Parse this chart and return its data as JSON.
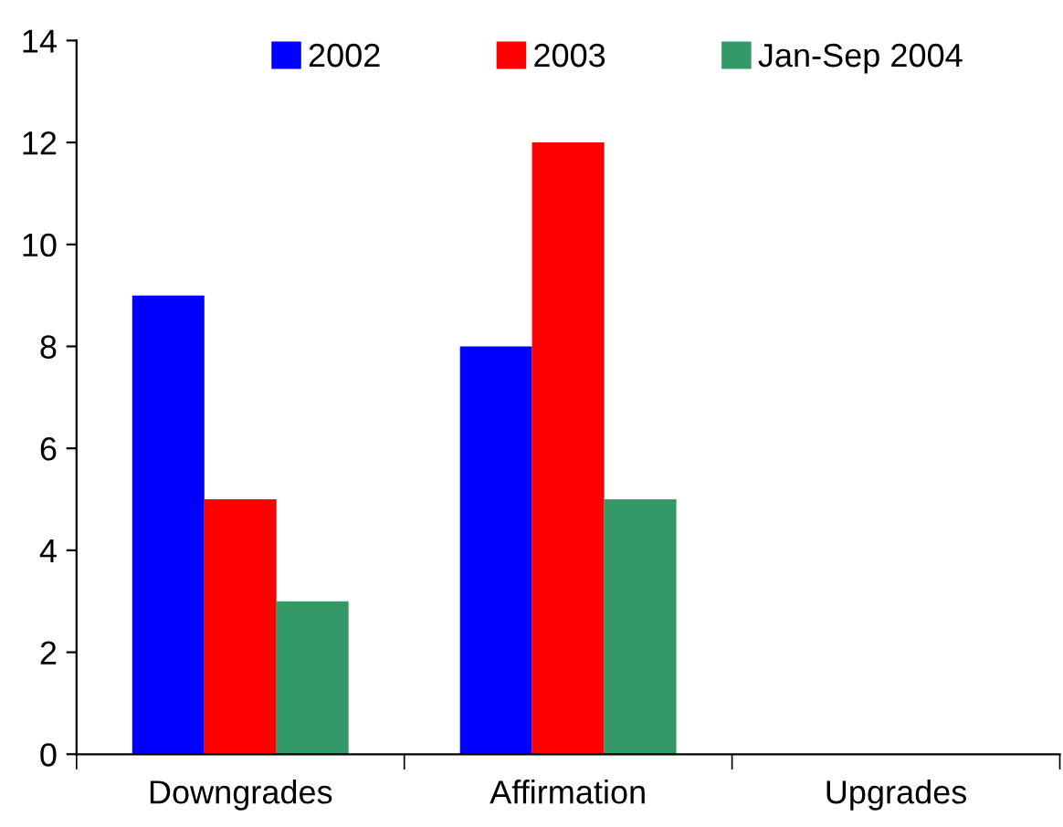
{
  "chart_data": {
    "type": "bar",
    "categories": [
      "Downgrades",
      "Affirmation",
      "Upgrades"
    ],
    "series": [
      {
        "name": "2002",
        "color": "#0000ff",
        "values": [
          9,
          8,
          0
        ]
      },
      {
        "name": "2003",
        "color": "#ff0000",
        "values": [
          5,
          12,
          0
        ]
      },
      {
        "name": "Jan-Sep 2004",
        "color": "#339966",
        "values": [
          3,
          5,
          0
        ]
      }
    ],
    "ylim": [
      0,
      14
    ],
    "yticks": [
      0,
      2,
      4,
      6,
      8,
      10,
      12,
      14
    ],
    "legend": "top"
  }
}
